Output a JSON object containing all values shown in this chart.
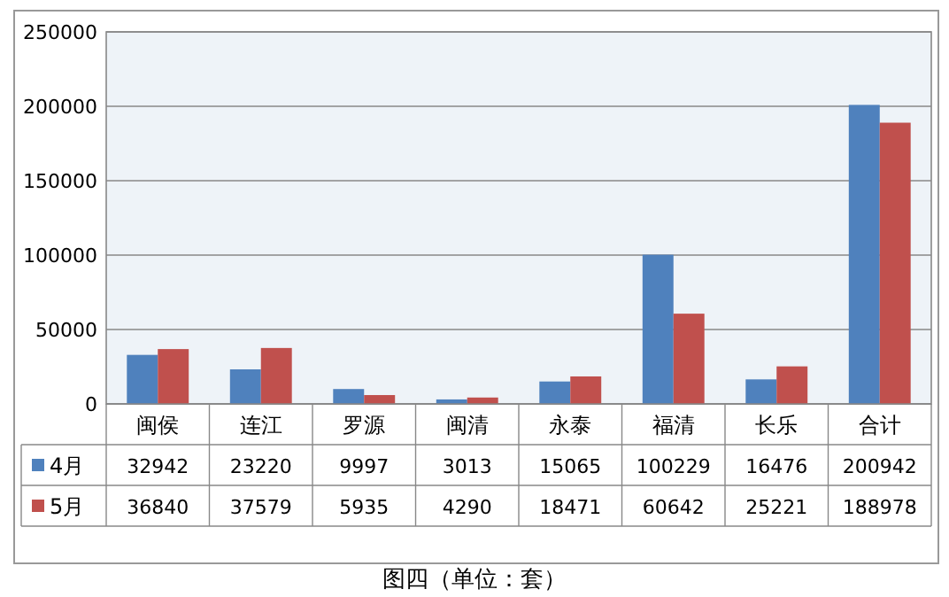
{
  "chart_data": {
    "type": "bar",
    "categories": [
      "闽侯",
      "连江",
      "罗源",
      "闽清",
      "永泰",
      "福清",
      "长乐",
      "合计"
    ],
    "series": [
      {
        "name": "4月",
        "color": "#4f81bd",
        "values": [
          32942,
          23220,
          9997,
          3013,
          15065,
          100229,
          16476,
          200942
        ]
      },
      {
        "name": "5月",
        "color": "#c0504d",
        "values": [
          36840,
          37579,
          5935,
          4290,
          18471,
          60642,
          25221,
          188978
        ]
      }
    ],
    "ylim": [
      0,
      250000
    ],
    "yticks": [
      0,
      50000,
      100000,
      150000,
      200000,
      250000
    ],
    "grid": "y",
    "legend": "bottom",
    "data_labels": true,
    "annotations": [
      "图四（单位：套）"
    ]
  }
}
